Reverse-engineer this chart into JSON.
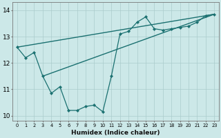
{
  "xlabel": "Humidex (Indice chaleur)",
  "bg_color": "#cce8e8",
  "grid_color": "#aacccc",
  "line_color": "#1a7070",
  "xlim": [
    -0.5,
    23.5
  ],
  "ylim": [
    9.8,
    14.3
  ],
  "xticks": [
    0,
    1,
    2,
    3,
    4,
    5,
    6,
    7,
    8,
    9,
    10,
    11,
    12,
    13,
    14,
    15,
    16,
    17,
    18,
    19,
    20,
    21,
    22,
    23
  ],
  "yticks": [
    10,
    11,
    12,
    13,
    14
  ],
  "line1": {
    "x": [
      0,
      1,
      2,
      3,
      4,
      5,
      6,
      7,
      8,
      9,
      10,
      11,
      12,
      13,
      14,
      15,
      16,
      17,
      18,
      19,
      20,
      21,
      22,
      23
    ],
    "y": [
      12.6,
      12.2,
      12.4,
      11.5,
      10.85,
      11.1,
      10.2,
      10.2,
      10.35,
      10.4,
      10.15,
      11.5,
      13.1,
      13.2,
      13.55,
      13.75,
      13.3,
      13.25,
      13.3,
      13.35,
      13.4,
      13.55,
      13.8,
      13.85
    ]
  },
  "line2": {
    "x": [
      0,
      23
    ],
    "y": [
      12.6,
      13.85
    ]
  },
  "line3": {
    "x": [
      3,
      23
    ],
    "y": [
      11.5,
      13.85
    ]
  },
  "marker_x": [
    0,
    1,
    2,
    3,
    4,
    5,
    6,
    7,
    8,
    9,
    10,
    11,
    12,
    13,
    14,
    15,
    16,
    17,
    18,
    19,
    20,
    21,
    22,
    23
  ],
  "marker_y": [
    12.6,
    12.2,
    12.4,
    11.5,
    10.85,
    11.1,
    10.2,
    10.2,
    10.35,
    10.4,
    10.15,
    11.5,
    13.1,
    13.2,
    13.55,
    13.75,
    13.3,
    13.25,
    13.3,
    13.35,
    13.4,
    13.55,
    13.8,
    13.85
  ]
}
